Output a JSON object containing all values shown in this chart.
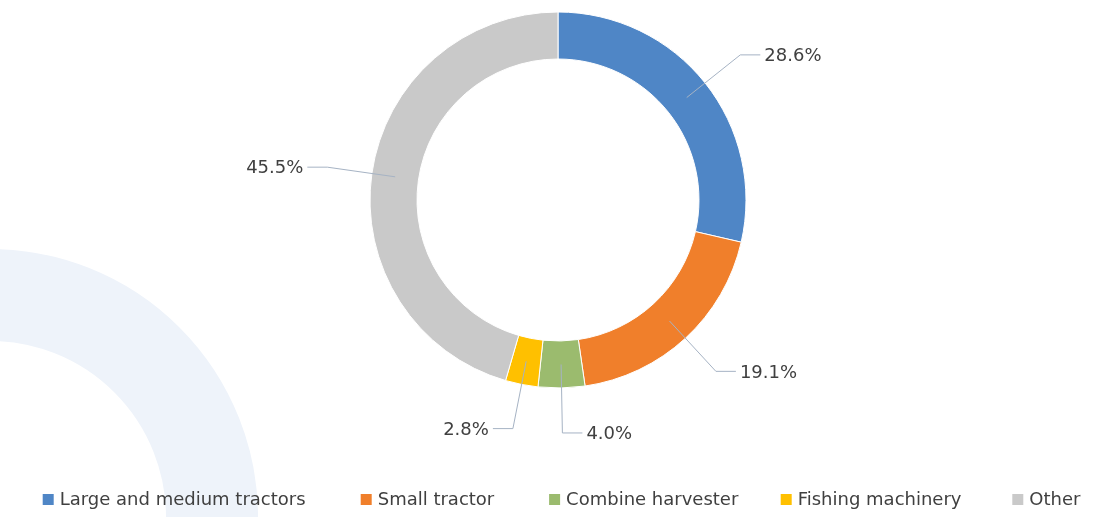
{
  "chart_data": {
    "type": "donut",
    "categories": [
      "Large and medium tractors",
      "Small tractor",
      "Combine harvester",
      "Fishing machinery",
      "Other"
    ],
    "values": [
      28.6,
      19.1,
      4.0,
      2.8,
      45.5
    ],
    "colors": [
      "#4f86c6",
      "#f07f2b",
      "#9bbb6e",
      "#ffc000",
      "#c9c9c9"
    ],
    "value_labels": [
      "28.6%",
      "19.1%",
      "4.0%",
      "2.8%",
      "45.5%"
    ],
    "legend": "bottom"
  }
}
